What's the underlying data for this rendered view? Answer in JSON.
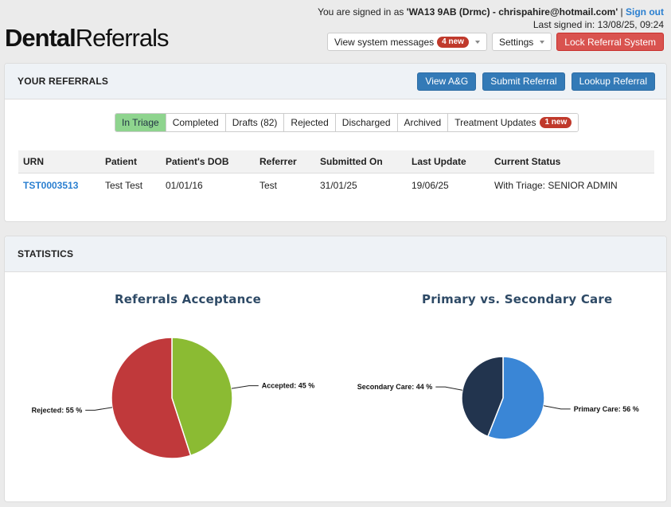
{
  "header": {
    "logo_bold": "Dental",
    "logo_light": "Referrals",
    "signed_in_prefix": "You are signed in as",
    "signed_in_user": "'WA13 9AB (Drmc) - chrispahire@hotmail.com'",
    "separator": "|",
    "sign_out": "Sign out",
    "last_signed_in": "Last signed in: 13/08/25, 09:24",
    "system_messages_label": "View system messages",
    "system_messages_badge": "4 new",
    "settings_label": "Settings",
    "lock_label": "Lock Referral System"
  },
  "referrals": {
    "title": "YOUR REFERRALS",
    "buttons": [
      "View A&G",
      "Submit Referral",
      "Lookup Referral"
    ],
    "tabs": [
      {
        "label": "In Triage",
        "active": true
      },
      {
        "label": "Completed"
      },
      {
        "label": "Drafts (82)"
      },
      {
        "label": "Rejected"
      },
      {
        "label": "Discharged"
      },
      {
        "label": "Archived"
      },
      {
        "label": "Treatment Updates",
        "badge": "1 new"
      }
    ],
    "columns": [
      "URN",
      "Patient",
      "Patient's DOB",
      "Referrer",
      "Submitted On",
      "Last Update",
      "Current Status"
    ],
    "rows": [
      [
        "TST0003513",
        "Test Test",
        "01/01/16",
        "Test",
        "31/01/25",
        "19/06/25",
        "With Triage: SENIOR ADMIN"
      ]
    ]
  },
  "statistics": {
    "title": "STATISTICS"
  },
  "colors": {
    "accepted": "#8bbb33",
    "rejected": "#c0393b",
    "primary": "#3a86d6",
    "secondary": "#22344e"
  },
  "chart_data": [
    {
      "type": "pie",
      "title": "Referrals Acceptance",
      "series": [
        {
          "name": "Accepted",
          "value": 45,
          "label": "Accepted: 45 %"
        },
        {
          "name": "Rejected",
          "value": 55,
          "label": "Rejected: 55 %"
        }
      ]
    },
    {
      "type": "pie",
      "title": "Primary vs. Secondary Care",
      "series": [
        {
          "name": "Primary Care",
          "value": 56,
          "label": "Primary Care: 56 %"
        },
        {
          "name": "Secondary Care",
          "value": 44,
          "label": "Secondary Care: 44 %"
        }
      ]
    }
  ]
}
